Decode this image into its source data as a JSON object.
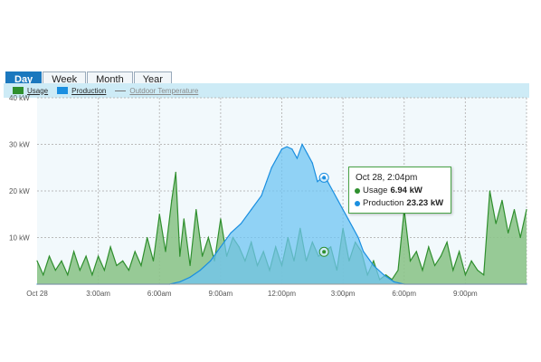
{
  "tabs": [
    {
      "label": "Day",
      "active": true
    },
    {
      "label": "Week",
      "active": false
    },
    {
      "label": "Month",
      "active": false
    },
    {
      "label": "Year",
      "active": false
    }
  ],
  "legend": {
    "usage_label": "Usage",
    "production_label": "Production",
    "temperature_label": "Outdoor Temperature"
  },
  "colors": {
    "usage": "#2f8f2e",
    "usage_fill": "#8dc48b",
    "production": "#1b8fe0",
    "production_fill": "#6fc4f3",
    "plot_bg": "#f2f9fc",
    "tab_active": "#1b78be"
  },
  "tooltip": {
    "title": "Oct 28, 2:04pm",
    "usage_label": "Usage",
    "usage_value": "6.94 kW",
    "production_label": "Production",
    "production_value": "23.23 kW"
  },
  "chart_data": {
    "type": "area",
    "title": "",
    "xlabel": "",
    "ylabel": "",
    "x_unit": "hour of day",
    "xlim": [
      0,
      24
    ],
    "ylim": [
      0,
      40
    ],
    "grid": true,
    "legend_position": "top-left",
    "x_ticks": [
      {
        "value": 0,
        "label": "Oct 28"
      },
      {
        "value": 3,
        "label": "3:00am"
      },
      {
        "value": 6,
        "label": "6:00am"
      },
      {
        "value": 9,
        "label": "9:00am"
      },
      {
        "value": 12,
        "label": "12:00pm"
      },
      {
        "value": 15,
        "label": "3:00pm"
      },
      {
        "value": 18,
        "label": "6:00pm"
      },
      {
        "value": 21,
        "label": "9:00pm"
      }
    ],
    "y_ticks": [
      {
        "value": 10,
        "label": "10 kW"
      },
      {
        "value": 20,
        "label": "20 kW"
      },
      {
        "value": 30,
        "label": "30 kW"
      },
      {
        "value": 40,
        "label": "40 kW"
      }
    ],
    "series": [
      {
        "name": "Usage",
        "x": [
          0,
          0.3,
          0.6,
          0.9,
          1.2,
          1.5,
          1.8,
          2.1,
          2.4,
          2.7,
          3.0,
          3.3,
          3.6,
          3.9,
          4.2,
          4.5,
          4.8,
          5.1,
          5.4,
          5.7,
          6.0,
          6.3,
          6.6,
          6.8,
          7.0,
          7.2,
          7.5,
          7.8,
          8.1,
          8.4,
          8.7,
          9.0,
          9.3,
          9.6,
          9.9,
          10.2,
          10.5,
          10.8,
          11.1,
          11.4,
          11.7,
          12.0,
          12.3,
          12.6,
          12.9,
          13.2,
          13.5,
          13.8,
          14.07,
          14.4,
          14.7,
          15.0,
          15.3,
          15.6,
          15.9,
          16.2,
          16.5,
          16.8,
          17.1,
          17.4,
          17.7,
          18.0,
          18.3,
          18.6,
          18.9,
          19.2,
          19.5,
          19.8,
          20.1,
          20.4,
          20.7,
          21.0,
          21.3,
          21.6,
          21.9,
          22.2,
          22.5,
          22.8,
          23.1,
          23.4,
          23.7,
          24.0
        ],
        "values": [
          5,
          2,
          6,
          3,
          5,
          2,
          7,
          3,
          6,
          2,
          6,
          3,
          8,
          4,
          5,
          3,
          7,
          4,
          10,
          5,
          15,
          7,
          18,
          24,
          6,
          14,
          4,
          16,
          6,
          10,
          5,
          14,
          6,
          10,
          8,
          5,
          9,
          4,
          7,
          3,
          8,
          4,
          10,
          5,
          12,
          5,
          9,
          6,
          6.94,
          8,
          3,
          12,
          5,
          9,
          7,
          2,
          5,
          1,
          2,
          1,
          3,
          16,
          5,
          7,
          3,
          8,
          4,
          6,
          9,
          3,
          7,
          2,
          5,
          3,
          2,
          20,
          13,
          18,
          11,
          16,
          10,
          16
        ]
      },
      {
        "name": "Production",
        "x": [
          0,
          6.5,
          7.0,
          7.5,
          8.0,
          8.5,
          9.0,
          9.5,
          10.0,
          10.5,
          11.0,
          11.25,
          11.5,
          11.75,
          12.0,
          12.25,
          12.5,
          12.75,
          13.0,
          13.25,
          13.5,
          13.75,
          14.07,
          14.25,
          14.5,
          14.75,
          15.0,
          15.25,
          15.5,
          15.75,
          16.0,
          16.5,
          17.0,
          17.5,
          18.0,
          24.0
        ],
        "values": [
          0,
          0,
          0.5,
          1.5,
          3,
          5,
          8,
          11,
          13,
          16,
          19,
          22,
          25,
          27,
          29,
          29.5,
          29,
          27,
          30,
          28,
          26,
          22,
          23.23,
          22,
          20,
          18,
          16,
          14,
          12,
          10,
          7,
          4,
          2,
          0.5,
          0,
          0
        ]
      }
    ]
  }
}
